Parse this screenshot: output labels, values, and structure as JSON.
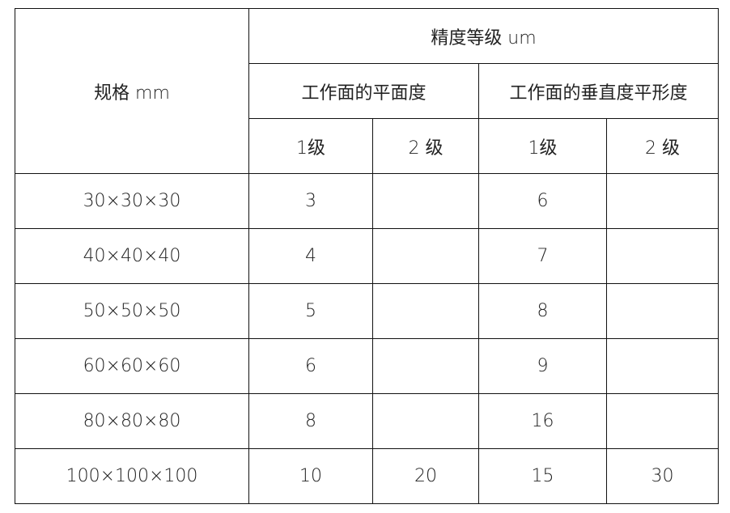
{
  "header": {
    "spec": "规格  mm",
    "precision": "精度等级 um",
    "flatness": "工作面的平面度",
    "perpendicularity": "工作面的垂直度平形度",
    "grades": [
      "1级",
      "2 级",
      "1级",
      "2 级"
    ]
  },
  "rows": [
    {
      "spec": "30×30×30",
      "flat1": "3",
      "flat2": "",
      "perp1": "6",
      "perp2": ""
    },
    {
      "spec": "40×40×40",
      "flat1": "4",
      "flat2": "",
      "perp1": "7",
      "perp2": ""
    },
    {
      "spec": "50×50×50",
      "flat1": "5",
      "flat2": "",
      "perp1": "8",
      "perp2": ""
    },
    {
      "spec": "60×60×60",
      "flat1": "6",
      "flat2": "",
      "perp1": "9",
      "perp2": ""
    },
    {
      "spec": "80×80×80",
      "flat1": "8",
      "flat2": "",
      "perp1": "16",
      "perp2": ""
    },
    {
      "spec": "100×100×100",
      "flat1": "10",
      "flat2": "20",
      "perp1": "15",
      "perp2": "30"
    }
  ]
}
